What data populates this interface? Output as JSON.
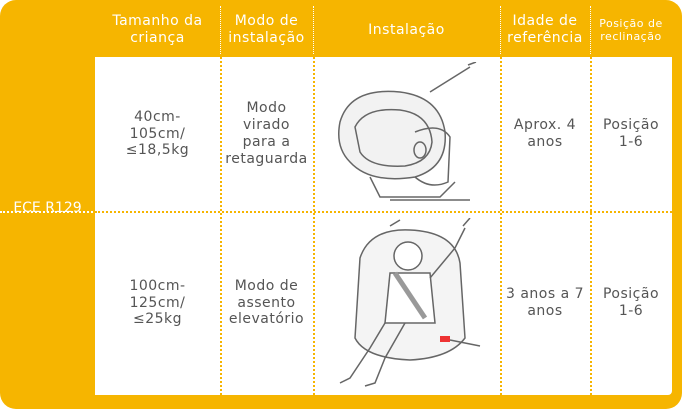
{
  "table": {
    "group": "ECE R129",
    "header": [
      [
        "Tamanho da",
        "criança"
      ],
      [
        "Modo de",
        "instalação"
      ],
      [
        "Instalação"
      ],
      [
        "Idade de",
        "referência"
      ],
      [
        "Posição de",
        "reclinação"
      ]
    ],
    "rows": [
      [
        [
          "40cm-",
          "105cm/",
          "≤18,5kg"
        ],
        [
          "Modo",
          "virado",
          "para a",
          "retaguarda"
        ],
        [
          "Aprox. 4",
          "anos"
        ],
        [
          "Posição",
          "1-6"
        ]
      ],
      [
        [
          "100cm-",
          "125cm/",
          "≤25kg"
        ],
        [
          "Modo de",
          "assento",
          "elevatório"
        ],
        [
          "3 anos a 7",
          "anos"
        ],
        [
          "Posição",
          "1-6"
        ]
      ]
    ]
  }
}
